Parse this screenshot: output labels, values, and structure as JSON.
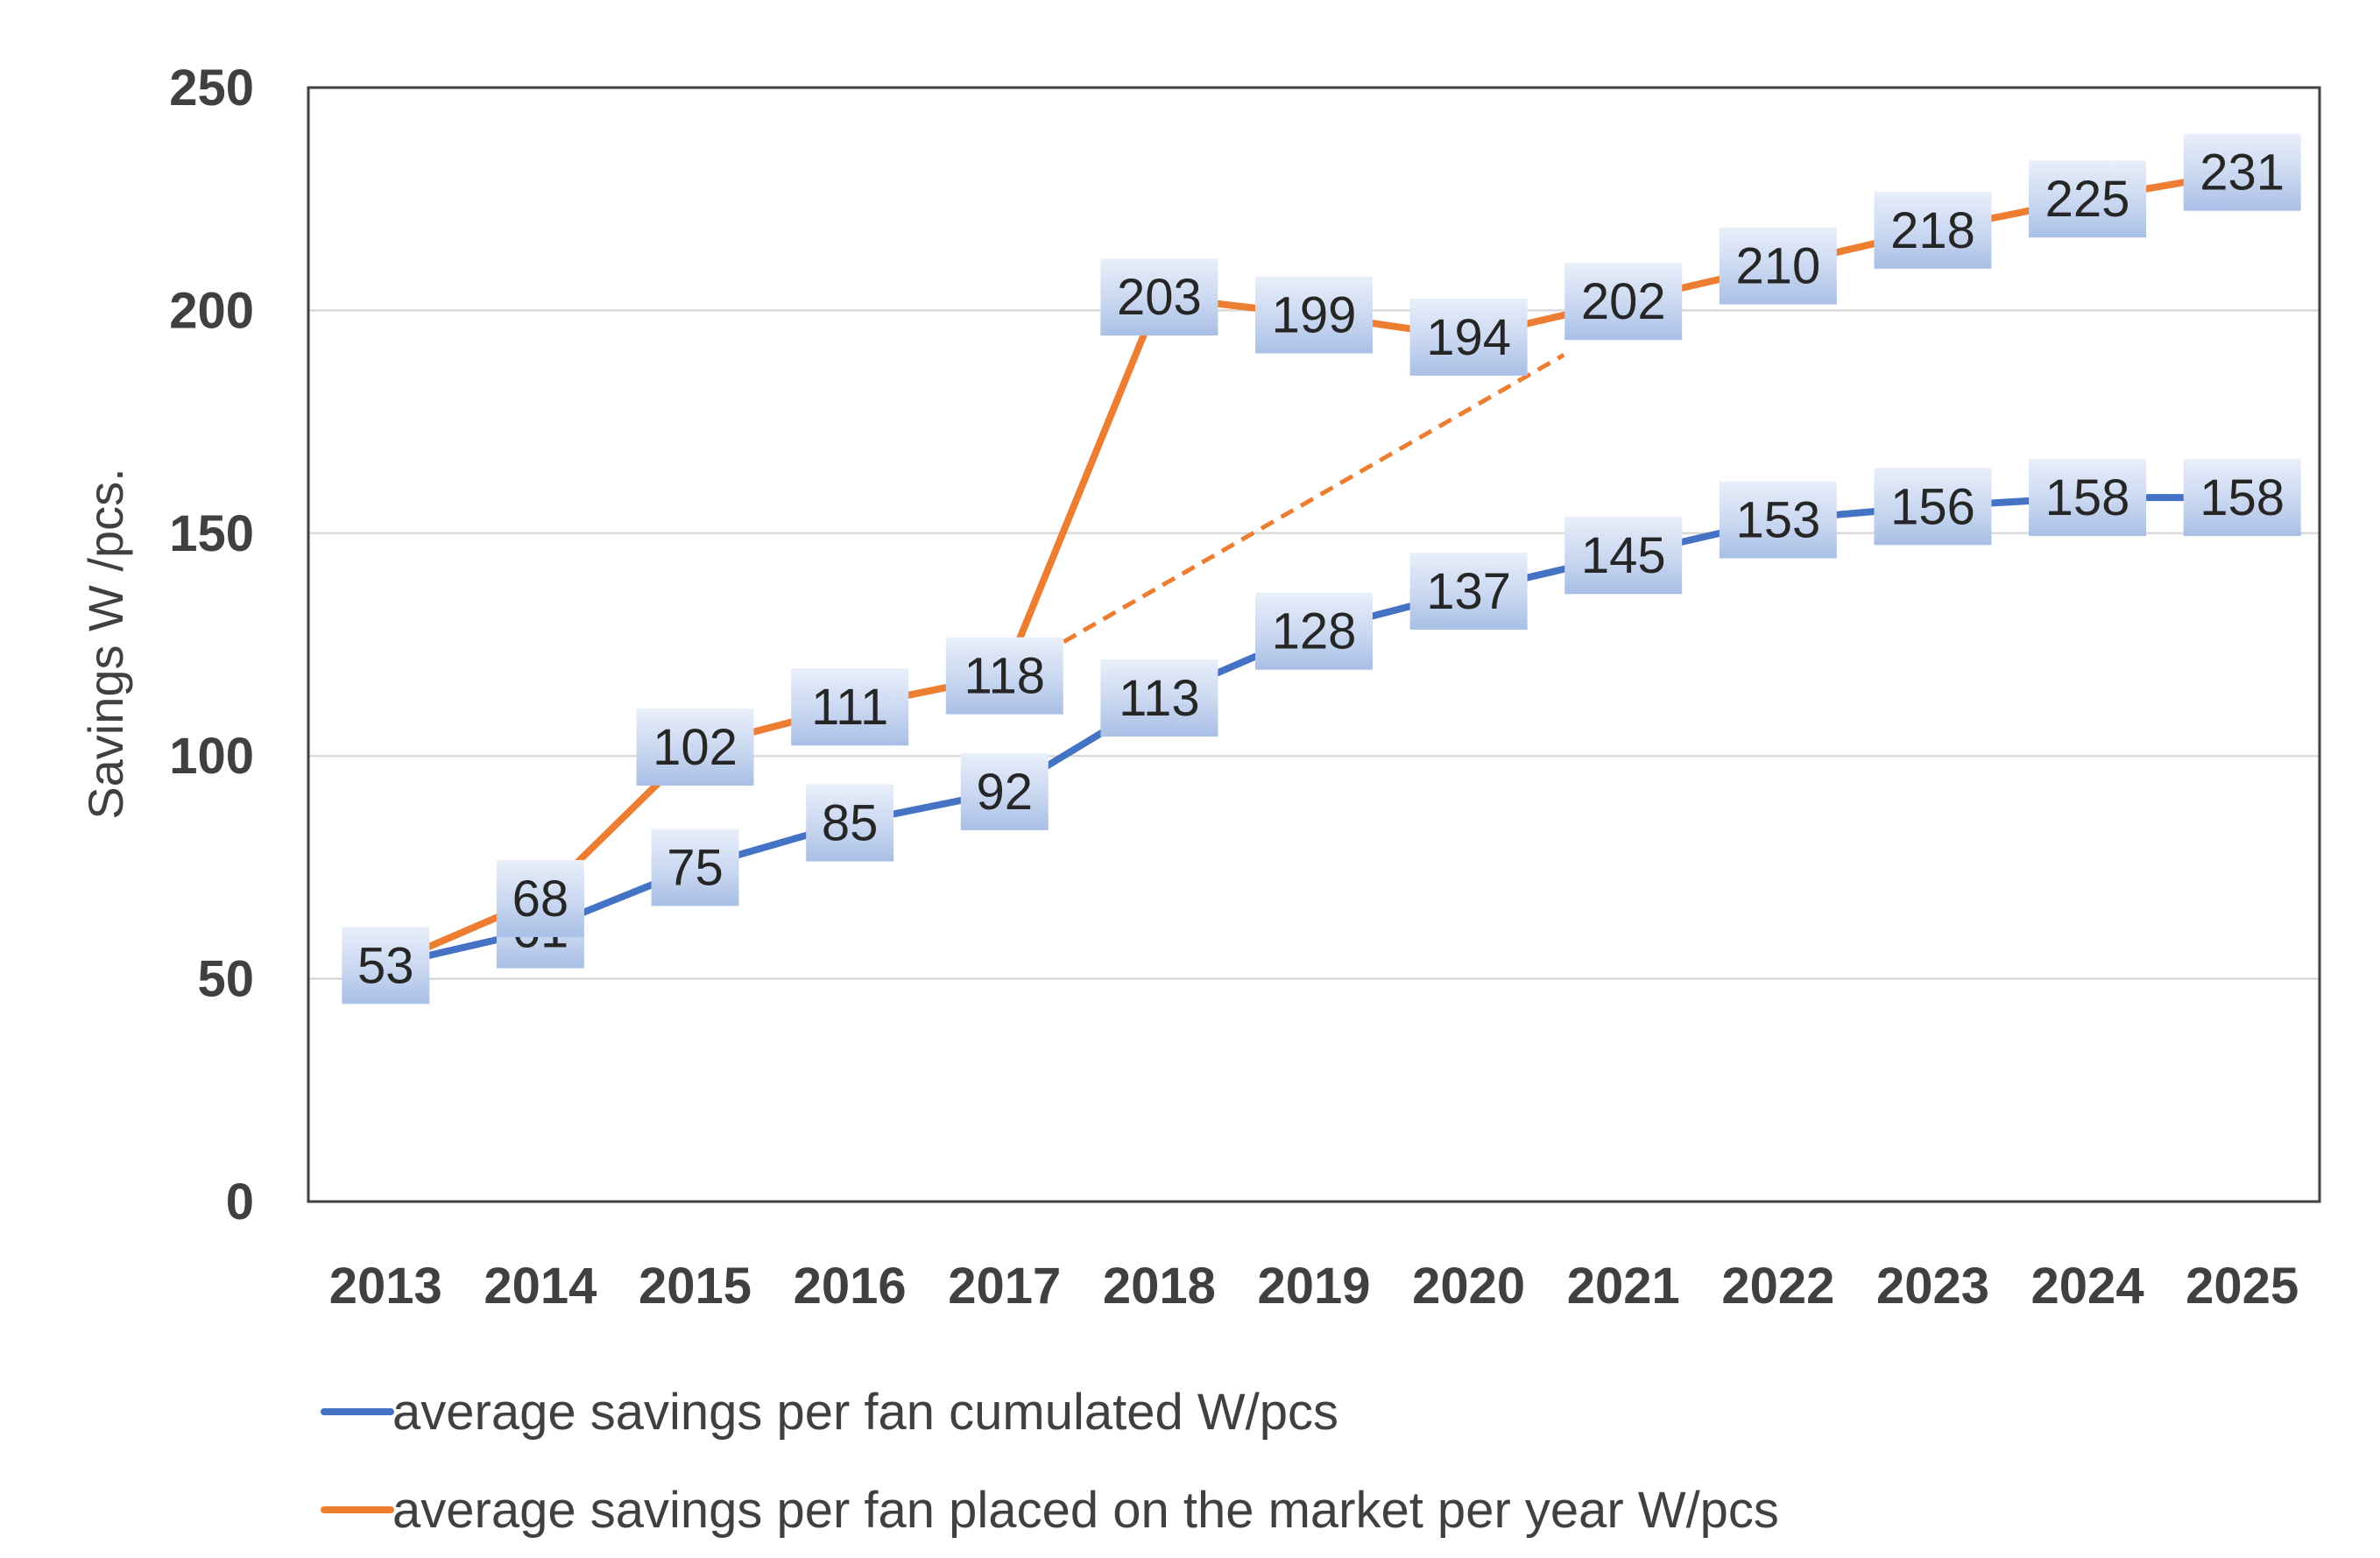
{
  "chart_data": {
    "type": "line",
    "title": "",
    "xlabel": "",
    "ylabel": "Savings W /pcs.",
    "ylim": [
      0,
      250
    ],
    "yticks": [
      0,
      50,
      100,
      150,
      200,
      250
    ],
    "grid": true,
    "legend_position": "bottom",
    "categories": [
      "2013",
      "2014",
      "2015",
      "2016",
      "2017",
      "2018",
      "2019",
      "2020",
      "2021",
      "2022",
      "2023",
      "2024",
      "2025"
    ],
    "series": [
      {
        "name": "average savings per fan cumulated W/pcs",
        "color": "#4472C4",
        "values": [
          53,
          61,
          75,
          85,
          92,
          113,
          128,
          137,
          145,
          153,
          156,
          158,
          158
        ]
      },
      {
        "name": "average savings per fan placed on the market per year W/pcs",
        "color": "#ED7D31",
        "values": [
          53,
          68,
          102,
          111,
          118,
          203,
          199,
          194,
          202,
          210,
          218,
          225,
          231
        ]
      }
    ],
    "annotations": [
      {
        "type": "dashed-trend-line",
        "color": "#ED7D31",
        "from": {
          "x": "2017",
          "y": 118
        },
        "to": {
          "x": "2021",
          "y": 190
        }
      }
    ]
  }
}
